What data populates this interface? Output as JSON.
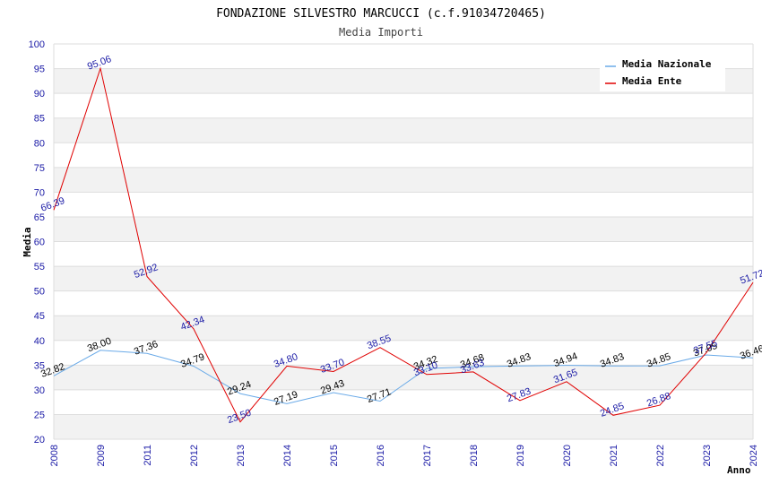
{
  "chart_data": {
    "type": "line",
    "title": "FONDAZIONE SILVESTRO MARCUCCI (c.f.91034720465)",
    "subtitle": "Media Importi",
    "xlabel": "Anno",
    "ylabel": "Media",
    "ylim": [
      20,
      100
    ],
    "y_ticks": [
      "20",
      "25",
      "30",
      "35",
      "40",
      "45",
      "50",
      "55",
      "60",
      "65",
      "70",
      "75",
      "80",
      "85",
      "90",
      "95",
      "100"
    ],
    "categories": [
      "2008",
      "2009",
      "2011",
      "2012",
      "2013",
      "2014",
      "2015",
      "2016",
      "2017",
      "2018",
      "2019",
      "2020",
      "2021",
      "2022",
      "2023",
      "2024"
    ],
    "legend_position": "top-right",
    "series": [
      {
        "name": "Media Nazionale",
        "color": "#6aaae8",
        "values": [
          32.82,
          38.0,
          37.36,
          34.79,
          29.24,
          27.19,
          29.43,
          27.71,
          34.32,
          34.68,
          34.83,
          34.94,
          34.83,
          34.85,
          37.05,
          36.46
        ],
        "labels": [
          "32.82",
          "38.00",
          "37.36",
          "34.79",
          "29.24",
          "27.19",
          "29.43",
          "27.71",
          "34.32",
          "34.68",
          "34.83",
          "34.94",
          "34.83",
          "34.85",
          "37.05",
          "36.46"
        ]
      },
      {
        "name": "Media Ente",
        "color": "#e00000",
        "values": [
          66.39,
          95.06,
          52.92,
          42.34,
          23.5,
          34.8,
          33.7,
          38.55,
          33.1,
          33.63,
          27.83,
          31.65,
          24.85,
          26.88,
          37.55,
          51.72
        ],
        "labels": [
          "66.39",
          "95.06",
          "52.92",
          "42.34",
          "23.50",
          "34.80",
          "33.70",
          "38.55",
          "33.10",
          "33.63",
          "27.83",
          "31.65",
          "24.85",
          "26.88",
          "37.55",
          "51.72"
        ]
      }
    ]
  }
}
